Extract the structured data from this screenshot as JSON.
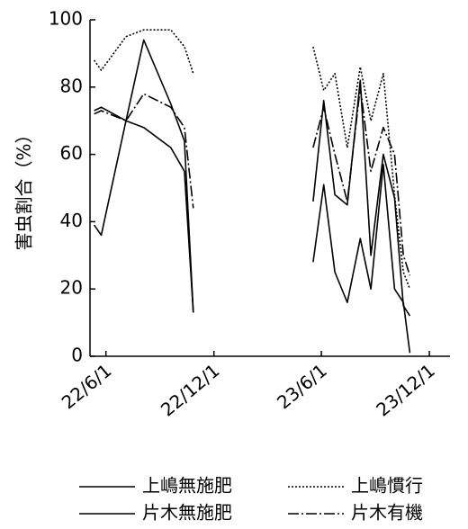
{
  "chart_data": {
    "type": "line",
    "y_label": "害虫割合（%）",
    "x": [
      "2022-05-12",
      "2022-05-24",
      "2022-07-05",
      "2022-08-04",
      "2022-09-19",
      "2022-10-12",
      "2022-10-27",
      null,
      "2023-05-18",
      "2023-06-05",
      "2023-06-24",
      "2023-07-15",
      "2023-08-06",
      "2023-08-24",
      "2023-09-14",
      "2023-10-03",
      "2023-10-18",
      "2023-10-29"
    ],
    "xlim": [
      "2022-05-05",
      "2024-01-05"
    ],
    "xticks": [
      {
        "value": "2022-06-01",
        "label": "22/6/1"
      },
      {
        "value": "2022-12-01",
        "label": "22/12/1"
      },
      {
        "value": "2023-06-01",
        "label": "23/6/1"
      },
      {
        "value": "2023-12-01",
        "label": "23/12/1"
      }
    ],
    "ylim": [
      0,
      100
    ],
    "yticks": [
      0,
      20,
      40,
      60,
      80,
      100
    ],
    "series": [
      {
        "name": "上嶋無施肥",
        "color": "#000000",
        "dash": "solid",
        "values": [
          39,
          36,
          70,
          94,
          75,
          64,
          13,
          null,
          46,
          76,
          48,
          45,
          82,
          30,
          60,
          47,
          15,
          12
        ]
      },
      {
        "name": "片木無施肥",
        "color": "#000000",
        "dash": "solid",
        "values": [
          73,
          74,
          70,
          68,
          62,
          55,
          13,
          null,
          28,
          51,
          25,
          16,
          35,
          20,
          57,
          20,
          16,
          1
        ]
      },
      {
        "name": "上嶋慣行",
        "color": "#000000",
        "dash": "dotted",
        "values": [
          88,
          85,
          95,
          97,
          97,
          92,
          84,
          null,
          92,
          79,
          84,
          62,
          86,
          70,
          84,
          48,
          25,
          20
        ]
      },
      {
        "name": "片木有機",
        "color": "#000000",
        "dash": "dashdot",
        "values": [
          72,
          73,
          70,
          78,
          74,
          68,
          44,
          null,
          62,
          74,
          60,
          46,
          80,
          55,
          68,
          60,
          30,
          24
        ]
      }
    ]
  }
}
